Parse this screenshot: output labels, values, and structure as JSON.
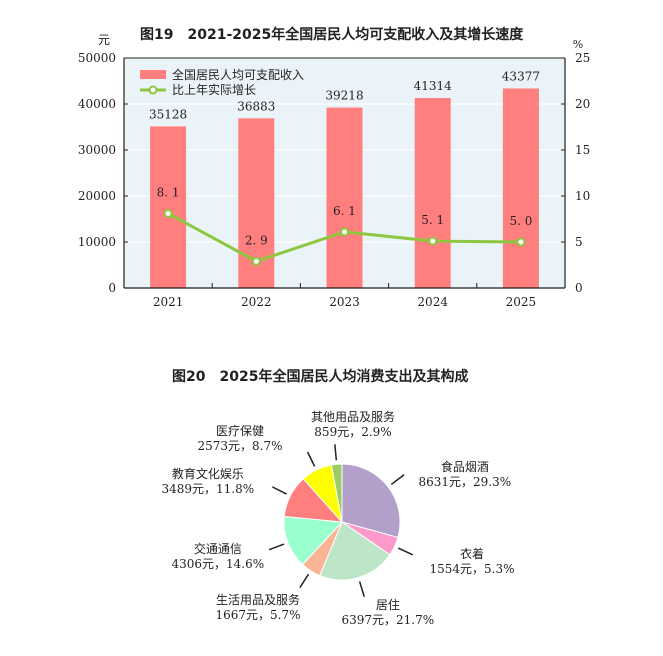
{
  "chart_data": [
    {
      "type": "bar+line",
      "title": "图19　2021-2025年全国居民人均可支配收入及其增长速度",
      "categories": [
        "2021",
        "2022",
        "2023",
        "2024",
        "2025"
      ],
      "series": [
        {
          "name": "全国居民人均可支配收入",
          "type": "bar",
          "axis": "left",
          "color": "#ff7f7f",
          "values": [
            35128,
            36883,
            39218,
            41314,
            43377
          ],
          "labels": [
            "35128",
            "36883",
            "39218",
            "41314",
            "43377"
          ]
        },
        {
          "name": "比上年实际增长",
          "type": "line",
          "axis": "right",
          "color": "#8dc63f",
          "values": [
            8.1,
            2.9,
            6.1,
            5.1,
            5.0
          ],
          "labels": [
            "8.1",
            "2.9",
            "6.1",
            "5.1",
            "5.0"
          ]
        }
      ],
      "ylabel_left": "元",
      "ylabel_right": "%",
      "ylim_left": [
        0,
        50000
      ],
      "ylim_right": [
        0,
        25
      ],
      "yticks_left": [
        "0",
        "10000",
        "20000",
        "30000",
        "40000",
        "50000"
      ],
      "yticks_right": [
        "0",
        "5",
        "10",
        "15",
        "20",
        "25"
      ],
      "grid": true,
      "legend_position": "top-left inside",
      "background": "#eaf4f8"
    },
    {
      "type": "pie",
      "title": "图20　2025年全国居民人均消费支出及其构成",
      "slices": [
        {
          "name": "食品烟酒",
          "value": 8631,
          "percent": 29.3,
          "label": "8631元，29.3%",
          "color": "#b3a0ca"
        },
        {
          "name": "衣着",
          "value": 1554,
          "percent": 5.3,
          "label": "1554元，5.3%",
          "color": "#ff99cc"
        },
        {
          "name": "居住",
          "value": 6397,
          "percent": 21.7,
          "label": "6397元，21.7%",
          "color": "#bde5c8"
        },
        {
          "name": "生活用品及服务",
          "value": 1667,
          "percent": 5.7,
          "label": "1667元，5.7%",
          "color": "#f9b595"
        },
        {
          "name": "交通通信",
          "value": 4306,
          "percent": 14.6,
          "label": "4306元，14.6%",
          "color": "#99ffcc"
        },
        {
          "name": "教育文化娱乐",
          "value": 3489,
          "percent": 11.8,
          "label": "3489元，11.8%",
          "color": "#ff7f7f"
        },
        {
          "name": "医疗保健",
          "value": 2573,
          "percent": 8.7,
          "label": "2573元，8.7%",
          "color": "#ffff00"
        },
        {
          "name": "其他用品及服务",
          "value": 859,
          "percent": 2.9,
          "label": "859元，2.9%",
          "color": "#99cc66"
        }
      ]
    }
  ]
}
